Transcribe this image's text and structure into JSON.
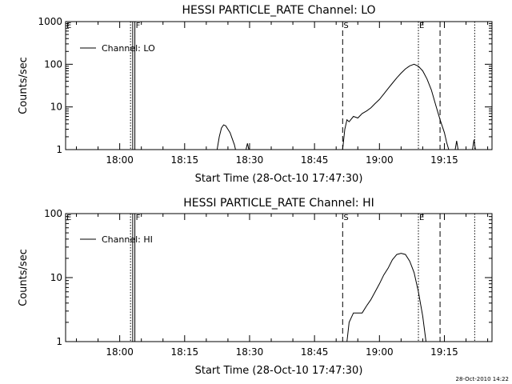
{
  "footer_timestamp": "28-Oct-2010 14:22",
  "chart_data": [
    {
      "type": "line",
      "title": "HESSI PARTICLE_RATE Channel: LO",
      "xlabel": "Start Time (28-Oct-10 17:47:30)",
      "ylabel": "Counts/sec",
      "yscale": "log",
      "xlim": [
        "17:47:30",
        "19:26:00"
      ],
      "ylim": [
        1,
        1000
      ],
      "x_ticks": [
        "18:00",
        "18:15",
        "18:30",
        "18:45",
        "19:00",
        "19:15"
      ],
      "y_ticks": [
        1,
        10,
        100,
        1000
      ],
      "y_tick_labels": [
        "1",
        "10",
        "100",
        "1000"
      ],
      "legend": {
        "label": "Channel: LO",
        "position": "top-left"
      },
      "markers": [
        {
          "label": "E",
          "time": "17:47:30",
          "style": "dotted"
        },
        {
          "label": "",
          "time": "18:02:30",
          "style": "dotted"
        },
        {
          "label": "",
          "time": "18:03:00",
          "style": "solid"
        },
        {
          "label": "F",
          "time": "18:03:30",
          "style": "solid"
        },
        {
          "label": "S",
          "time": "18:51:30",
          "style": "dashed"
        },
        {
          "label": "E",
          "time": "19:09:00",
          "style": "dotted"
        },
        {
          "label": "",
          "time": "19:14:00",
          "style": "dashed"
        },
        {
          "label": "",
          "time": "19:22:00",
          "style": "dotted"
        }
      ],
      "series": [
        {
          "name": "Channel: LO",
          "segments": [
            [
              [
                "18:22:30",
                1
              ],
              [
                "18:23:00",
                2
              ],
              [
                "18:23:30",
                3.2
              ],
              [
                "18:24:00",
                3.8
              ],
              [
                "18:24:30",
                3.6
              ],
              [
                "18:25:00",
                3.0
              ],
              [
                "18:25:30",
                2.5
              ],
              [
                "18:26:00",
                1.8
              ],
              [
                "18:26:30",
                1.3
              ],
              [
                "18:26:45",
                1
              ]
            ],
            [
              [
                "18:29:10",
                1
              ],
              [
                "18:29:30",
                1.4
              ],
              [
                "18:29:50",
                1
              ]
            ],
            [
              [
                "18:51:30",
                1
              ],
              [
                "18:52:00",
                3
              ],
              [
                "18:52:30",
                5
              ],
              [
                "18:53:00",
                4.5
              ],
              [
                "18:54:00",
                6
              ],
              [
                "18:55:00",
                5.5
              ],
              [
                "18:56:00",
                7
              ],
              [
                "18:57:00",
                8
              ],
              [
                "18:58:00",
                9.5
              ],
              [
                "18:59:00",
                12
              ],
              [
                "19:00:00",
                15
              ],
              [
                "19:01:00",
                20
              ],
              [
                "19:02:00",
                27
              ],
              [
                "19:03:00",
                36
              ],
              [
                "19:04:00",
                48
              ],
              [
                "19:05:00",
                62
              ],
              [
                "19:06:00",
                78
              ],
              [
                "19:07:00",
                92
              ],
              [
                "19:08:00",
                100
              ],
              [
                "19:09:00",
                90
              ],
              [
                "19:10:00",
                70
              ],
              [
                "19:11:00",
                45
              ],
              [
                "19:12:00",
                25
              ],
              [
                "19:13:00",
                11
              ],
              [
                "19:14:00",
                5
              ],
              [
                "19:15:00",
                2.5
              ],
              [
                "19:15:30",
                1.5
              ],
              [
                "19:16:00",
                1
              ]
            ],
            [
              [
                "19:17:30",
                1
              ],
              [
                "19:17:50",
                1.6
              ],
              [
                "19:18:10",
                1
              ]
            ],
            [
              [
                "19:21:30",
                1
              ],
              [
                "19:21:50",
                1.7
              ],
              [
                "19:22:10",
                1
              ]
            ]
          ]
        }
      ]
    },
    {
      "type": "line",
      "title": "HESSI PARTICLE_RATE Channel: HI",
      "xlabel": "Start Time (28-Oct-10 17:47:30)",
      "ylabel": "Counts/sec",
      "yscale": "log",
      "xlim": [
        "17:47:30",
        "19:26:00"
      ],
      "ylim": [
        1,
        100
      ],
      "x_ticks": [
        "18:00",
        "18:15",
        "18:30",
        "18:45",
        "19:00",
        "19:15"
      ],
      "y_ticks": [
        1,
        10,
        100
      ],
      "y_tick_labels": [
        "1",
        "10",
        "100"
      ],
      "legend": {
        "label": "Channel: HI",
        "position": "top-left"
      },
      "markers": [
        {
          "label": "E",
          "time": "17:47:30",
          "style": "dotted"
        },
        {
          "label": "",
          "time": "18:02:30",
          "style": "dotted"
        },
        {
          "label": "",
          "time": "18:03:00",
          "style": "solid"
        },
        {
          "label": "F",
          "time": "18:03:30",
          "style": "solid"
        },
        {
          "label": "S",
          "time": "18:51:30",
          "style": "dashed"
        },
        {
          "label": "E",
          "time": "19:09:00",
          "style": "dotted"
        },
        {
          "label": "",
          "time": "19:14:00",
          "style": "dashed"
        },
        {
          "label": "",
          "time": "19:22:00",
          "style": "dotted"
        }
      ],
      "series": [
        {
          "name": "Channel: HI",
          "segments": [
            [
              [
                "18:52:30",
                1
              ],
              [
                "18:53:00",
                2
              ],
              [
                "18:54:00",
                2.8
              ],
              [
                "18:56:00",
                2.8
              ],
              [
                "18:57:00",
                3.6
              ],
              [
                "18:58:00",
                4.5
              ],
              [
                "18:59:00",
                6
              ],
              [
                "19:00:00",
                8
              ],
              [
                "19:01:00",
                11
              ],
              [
                "19:02:00",
                14
              ],
              [
                "19:03:00",
                19
              ],
              [
                "19:04:00",
                23
              ],
              [
                "19:05:00",
                24
              ],
              [
                "19:06:00",
                23
              ],
              [
                "19:07:00",
                18
              ],
              [
                "19:08:00",
                12
              ],
              [
                "19:09:00",
                6
              ],
              [
                "19:10:00",
                2.5
              ],
              [
                "19:10:45",
                1
              ]
            ]
          ]
        }
      ]
    }
  ]
}
